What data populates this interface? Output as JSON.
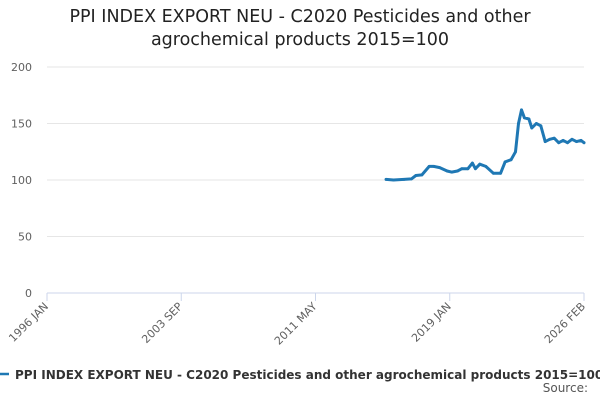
{
  "chart_data": {
    "type": "line",
    "title_line1": "PPI INDEX EXPORT NEU - C2020 Pesticides and other",
    "title_line2": "agrochemical products 2015=100",
    "xlabel": "",
    "ylabel": "",
    "ylim": [
      0,
      200
    ],
    "yticks": [
      0,
      50,
      100,
      150,
      200
    ],
    "x_tick_labels": [
      "1996 JAN",
      "2003 SEP",
      "2011 MAY",
      "2019 JAN",
      "2026 FEB"
    ],
    "grid": true,
    "legend_position": "bottom",
    "source_label": "Source:",
    "series": [
      {
        "name": "PPI INDEX EXPORT NEU - C2020 Pesticides and other agrochemical products 2015=100",
        "color": "#1f78b4",
        "x": [
          "2015-01",
          "2015-06",
          "2016-01",
          "2016-06",
          "2016-09",
          "2017-01",
          "2017-06",
          "2017-09",
          "2018-01",
          "2018-06",
          "2018-09",
          "2019-01",
          "2019-04",
          "2019-08",
          "2019-11",
          "2020-01",
          "2020-04",
          "2020-08",
          "2021-01",
          "2021-06",
          "2021-09",
          "2022-01",
          "2022-04",
          "2022-06",
          "2022-08",
          "2022-10",
          "2023-01",
          "2023-03",
          "2023-06",
          "2023-09",
          "2023-12",
          "2024-03",
          "2024-06",
          "2024-09",
          "2024-12",
          "2025-03",
          "2025-06",
          "2025-09",
          "2025-12",
          "2026-02"
        ],
        "values": [
          100.5,
          100,
          100.5,
          101,
          104,
          104.5,
          112,
          112,
          111,
          108,
          107,
          108,
          110,
          110,
          115,
          110,
          114,
          112,
          106,
          106,
          116,
          118,
          125,
          150,
          162,
          155,
          154,
          146,
          150,
          148,
          134,
          136,
          137,
          133,
          135,
          133,
          136,
          134,
          135,
          133
        ]
      }
    ]
  }
}
